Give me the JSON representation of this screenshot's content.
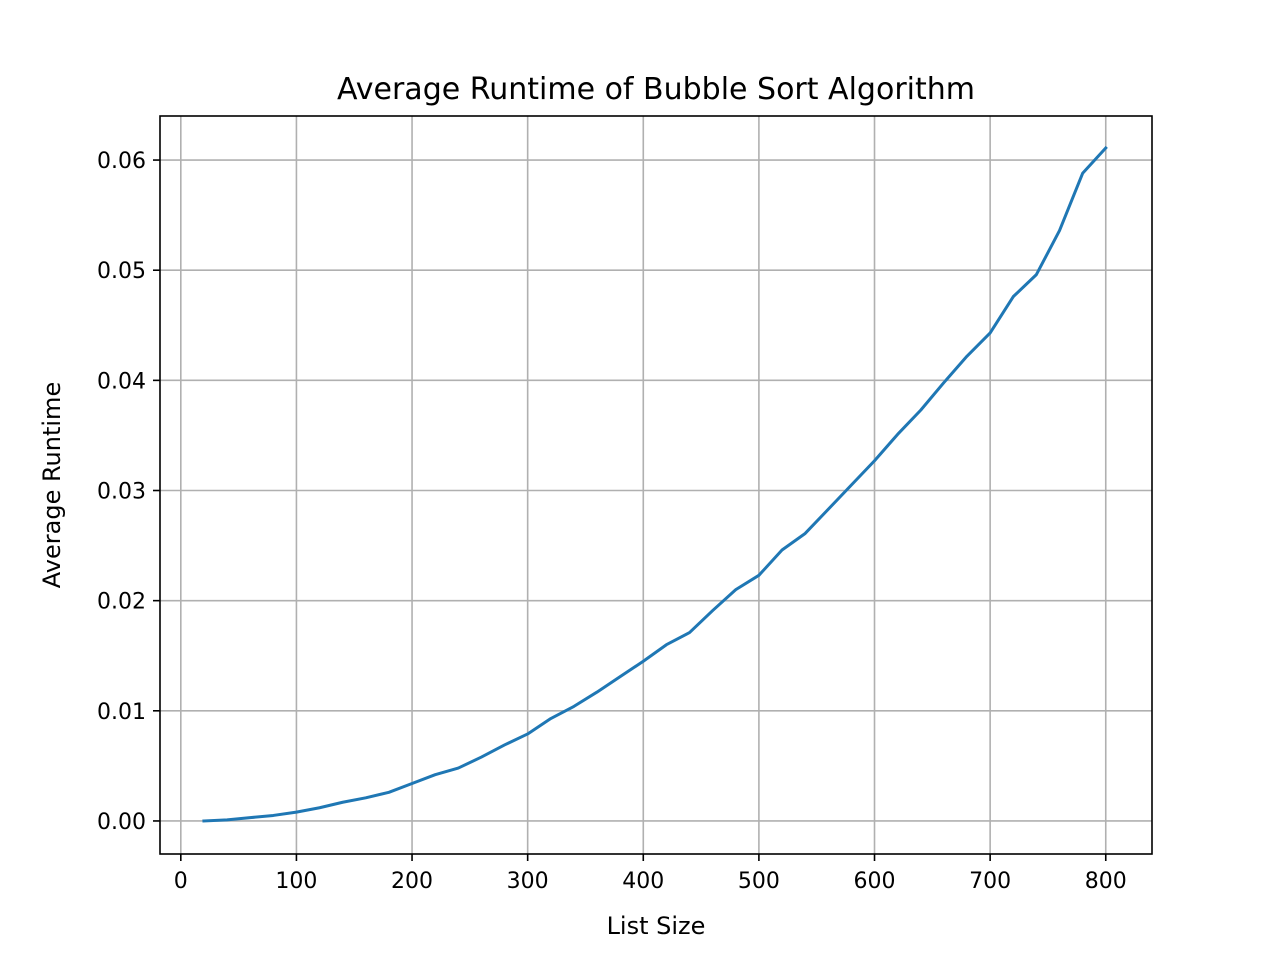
{
  "chart_data": {
    "type": "line",
    "title": "Average Runtime of Bubble Sort Algorithm",
    "xlabel": "List Size",
    "ylabel": "Average Runtime",
    "xlim": [
      -18,
      840
    ],
    "ylim": [
      -0.003,
      0.064
    ],
    "xticks": [
      0,
      100,
      200,
      300,
      400,
      500,
      600,
      700,
      800
    ],
    "yticks": [
      0.0,
      0.01,
      0.02,
      0.03,
      0.04,
      0.05,
      0.06
    ],
    "xtick_labels": [
      "0",
      "100",
      "200",
      "300",
      "400",
      "500",
      "600",
      "700",
      "800"
    ],
    "ytick_labels": [
      "0.00",
      "0.01",
      "0.02",
      "0.03",
      "0.04",
      "0.05",
      "0.06"
    ],
    "grid": true,
    "series": [
      {
        "color": "#1f77b4",
        "x": [
          20,
          40,
          60,
          80,
          100,
          120,
          140,
          160,
          180,
          200,
          220,
          240,
          260,
          280,
          300,
          320,
          340,
          360,
          380,
          400,
          420,
          440,
          460,
          480,
          500,
          520,
          540,
          560,
          580,
          600,
          620,
          640,
          660,
          680,
          700,
          720,
          740,
          760,
          780,
          800
        ],
        "y": [
          0.0,
          0.0001,
          0.0003,
          0.0005,
          0.0008,
          0.0012,
          0.0017,
          0.0021,
          0.0026,
          0.0034,
          0.0042,
          0.0048,
          0.0058,
          0.0069,
          0.0079,
          0.0093,
          0.0104,
          0.0117,
          0.0131,
          0.0145,
          0.016,
          0.0171,
          0.0191,
          0.021,
          0.0223,
          0.0246,
          0.0261,
          0.0283,
          0.0305,
          0.0327,
          0.0351,
          0.0373,
          0.0398,
          0.0422,
          0.0443,
          0.0476,
          0.0496,
          0.0536,
          0.0588,
          0.0611
        ]
      }
    ]
  }
}
